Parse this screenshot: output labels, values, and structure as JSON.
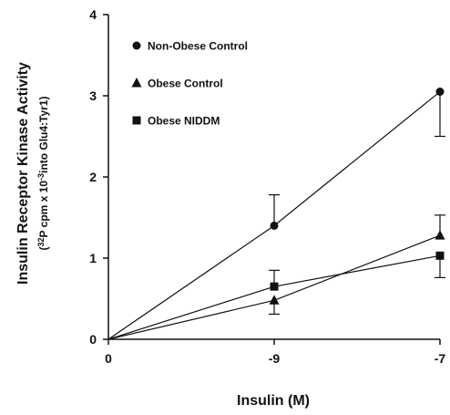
{
  "chart_data": {
    "type": "line",
    "x_tick_labels": [
      "0",
      "-9",
      "-7"
    ],
    "y_ticks": [
      0,
      1,
      2,
      3,
      4
    ],
    "y_tick_labels": [
      "0",
      "1",
      "2",
      "3",
      "4"
    ],
    "ylim": [
      0,
      4
    ],
    "xlabel": "Insulin (M)",
    "ylabel": "Insulin Receptor Kinase Activity",
    "ylabel_units": "(32P cpm x 10-3into Glu4:Tyr1)",
    "legend_position": "top-left",
    "grid": false,
    "series": [
      {
        "name": "Non-Obese Control",
        "marker": "circle",
        "values": [
          0.0,
          1.4,
          3.05
        ],
        "err_upper": [
          0,
          0.38,
          0
        ],
        "err_lower": [
          0,
          0,
          0.55
        ]
      },
      {
        "name": "Obese Control",
        "marker": "triangle",
        "values": [
          0.0,
          0.48,
          1.28
        ],
        "err_upper": [
          0,
          0,
          0.25
        ],
        "err_lower": [
          0,
          0.17,
          0
        ]
      },
      {
        "name": "Obese NIDDM",
        "marker": "square",
        "values": [
          0.0,
          0.65,
          1.03
        ],
        "err_upper": [
          0,
          0.2,
          0
        ],
        "err_lower": [
          0,
          0,
          0.27
        ]
      }
    ]
  }
}
